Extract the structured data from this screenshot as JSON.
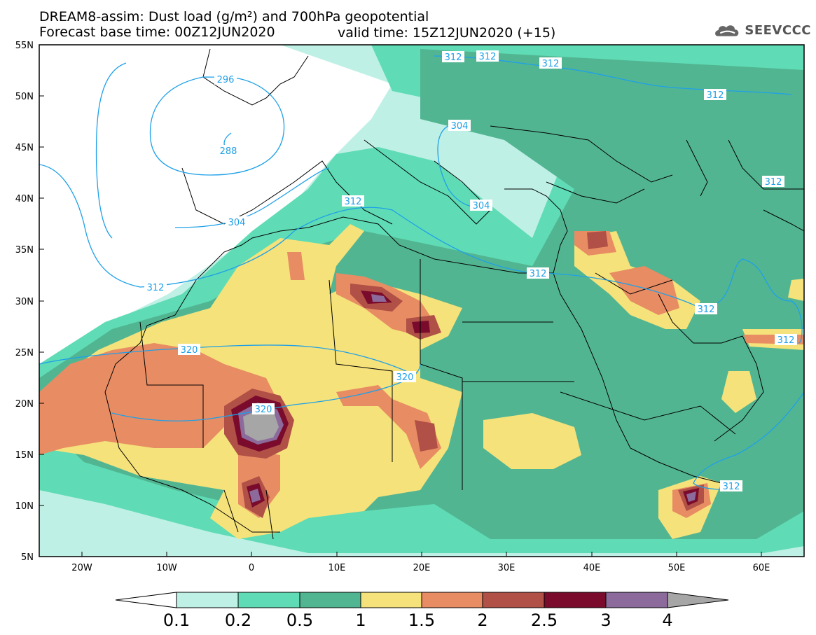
{
  "title": {
    "line1": "DREAM8-assim: Dust load (g/m²) and 700hPa geopotential",
    "line2a": "Forecast base time: 00Z12JUN2020",
    "line2b": "valid time: 15Z12JUN2020 (+15)"
  },
  "logo": {
    "text": "SEEVCCC",
    "icon": "cloud-logo-icon"
  },
  "axes": {
    "lat_labels": [
      "55N",
      "50N",
      "45N",
      "40N",
      "35N",
      "30N",
      "25N",
      "20N",
      "15N",
      "10N",
      "5N"
    ],
    "lon_labels": [
      "20W",
      "10W",
      "0",
      "10E",
      "20E",
      "30E",
      "40E",
      "50E",
      "60E"
    ],
    "lat_range": [
      5,
      55
    ],
    "lon_range": [
      -25,
      65
    ]
  },
  "contours": {
    "labels": [
      "312",
      "312",
      "312",
      "312",
      "296",
      "288",
      "304",
      "304",
      "312",
      "304",
      "312",
      "312",
      "312",
      "312",
      "320",
      "320",
      "320",
      "312"
    ]
  },
  "colorbar": {
    "labels": [
      "0.1",
      "0.2",
      "0.5",
      "1",
      "1.5",
      "2",
      "2.5",
      "3",
      "4"
    ],
    "colors": [
      "#ffffff",
      "#bff0e5",
      "#5fdcb5",
      "#52b592",
      "#f5e27a",
      "#e88c63",
      "#b05046",
      "#7a0b2c",
      "#8c6a9b",
      "#a6a6a6"
    ]
  }
}
